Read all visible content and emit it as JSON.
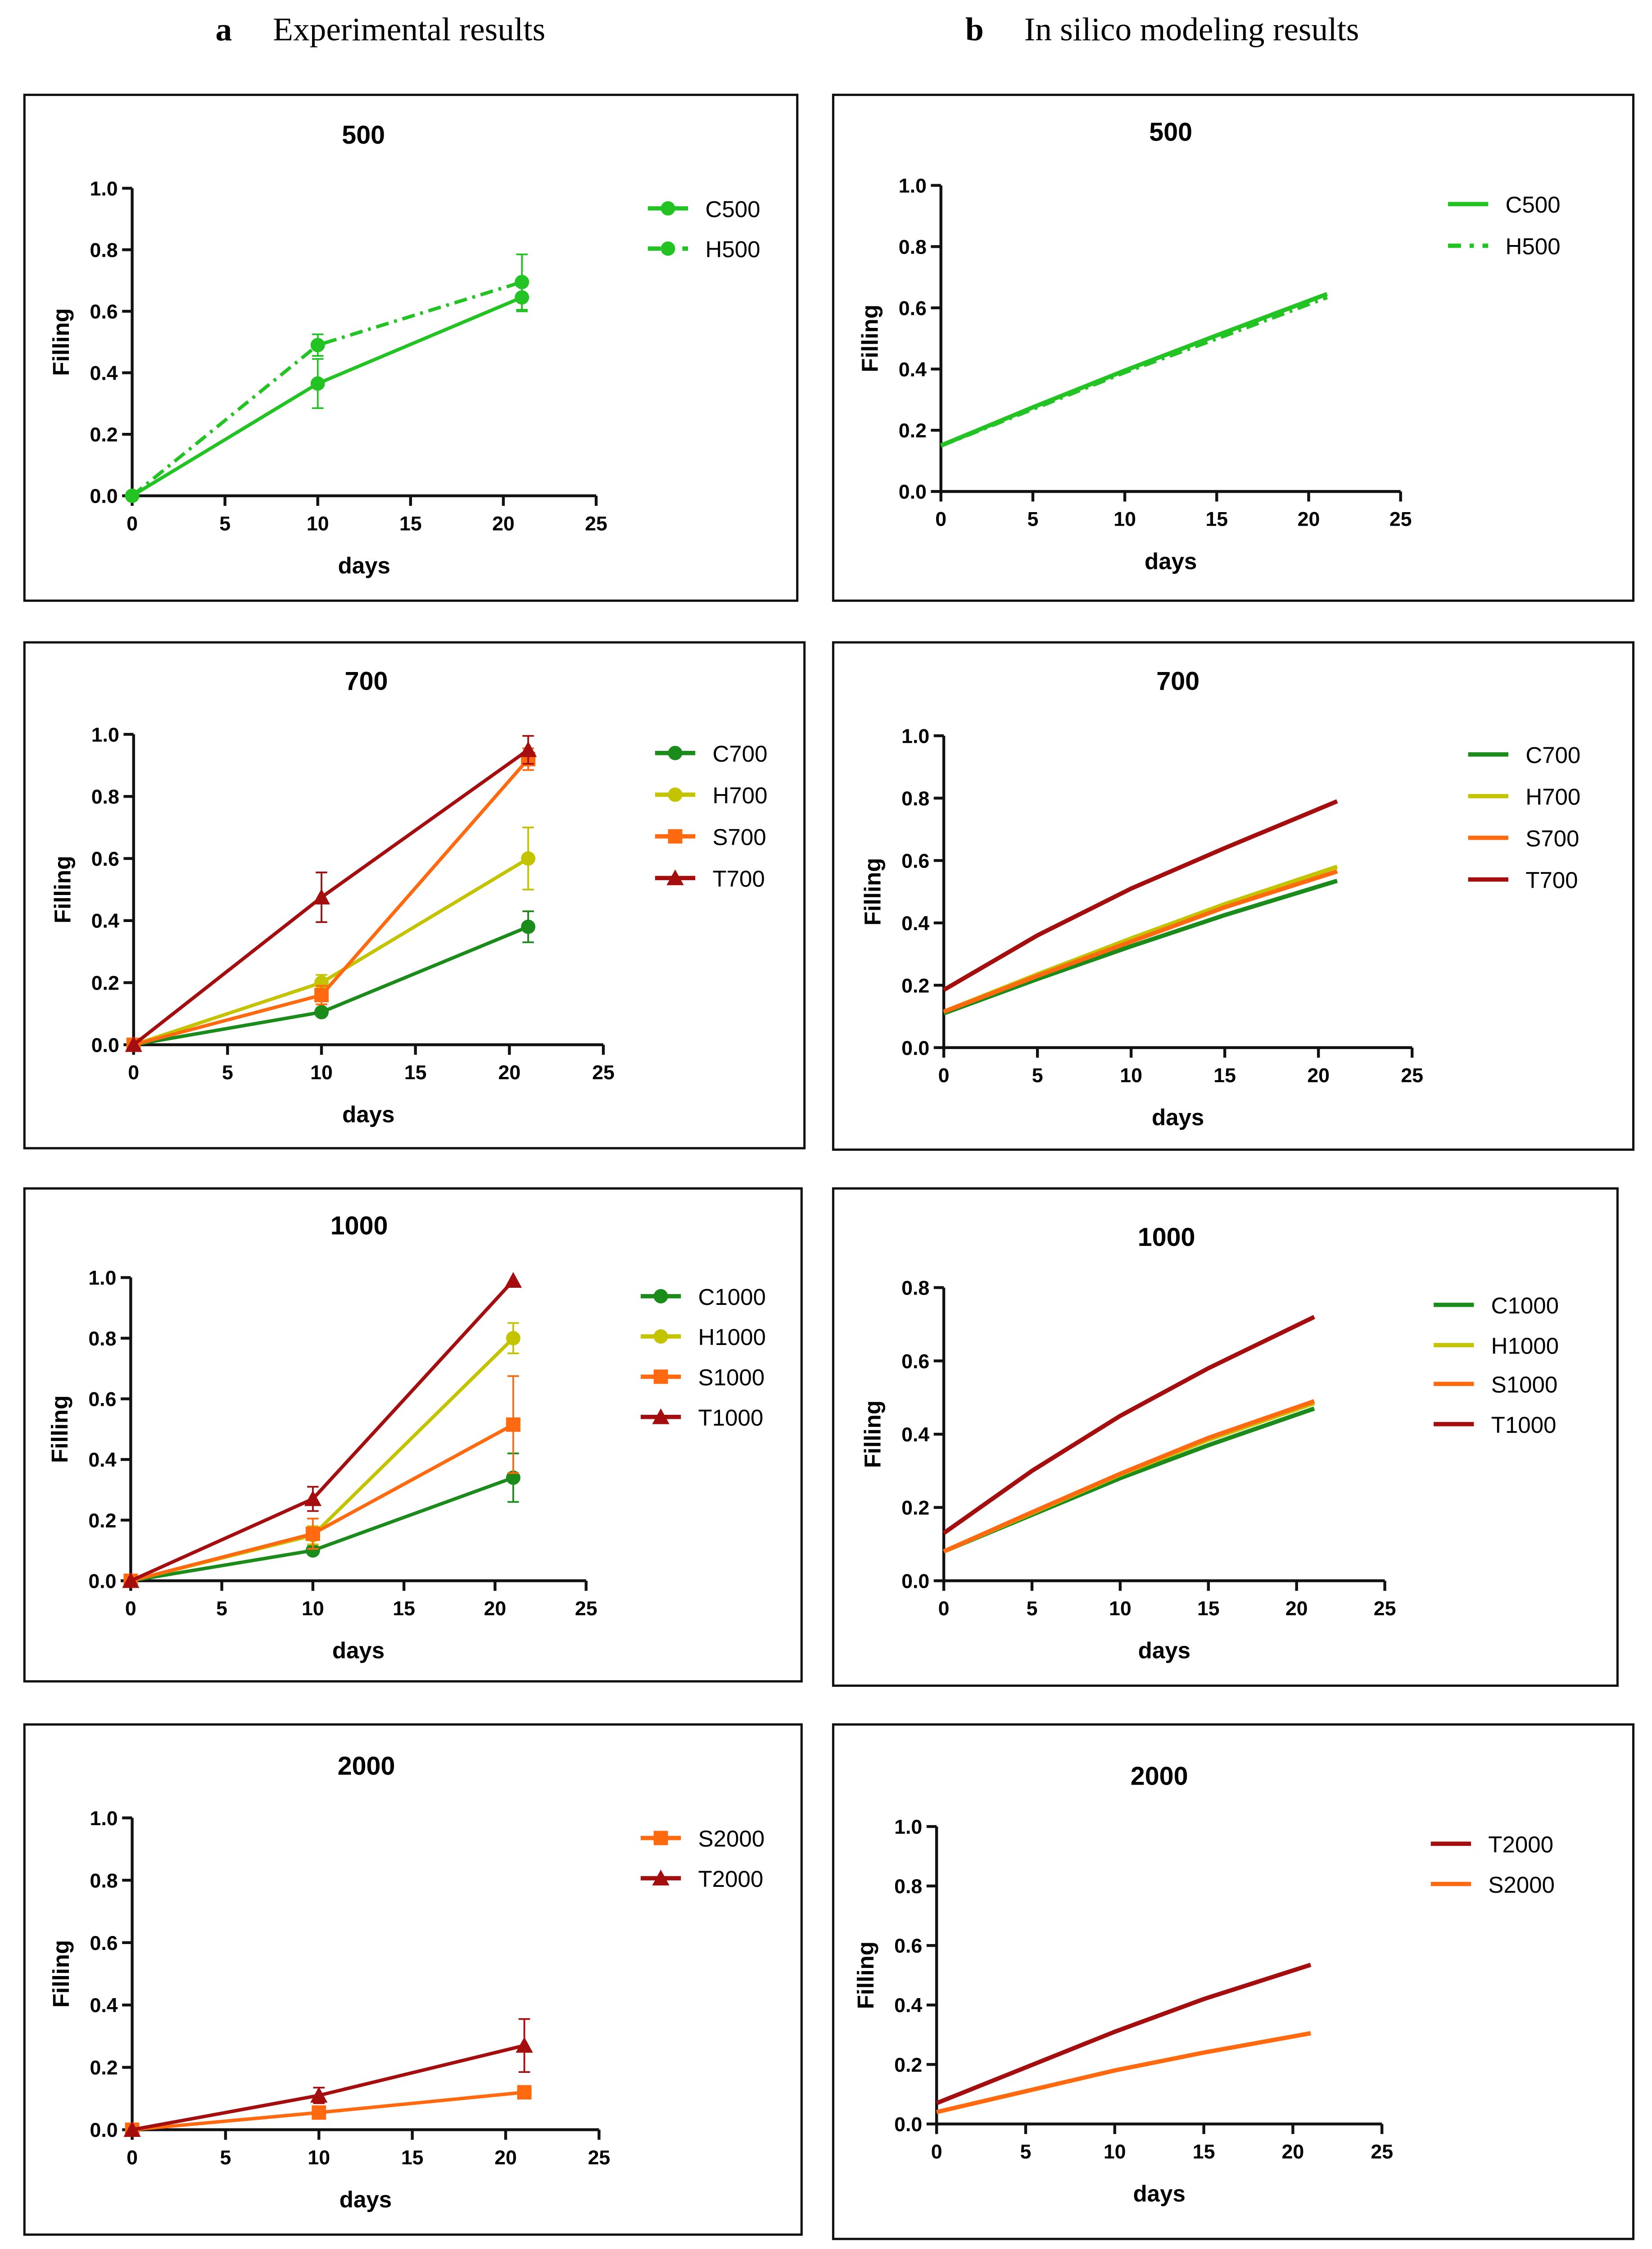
{
  "headers": {
    "a_letter": "a",
    "a_title": "Experimental results",
    "b_letter": "b",
    "b_title": "In silico modeling results"
  },
  "colors": {
    "green500": "#22c322",
    "C": "#1b8b1b",
    "H": "#c3c300",
    "S": "#ff6a10",
    "T": "#a40e0e"
  },
  "chart_data": [
    {
      "type": "line",
      "panel": "a",
      "title": "500",
      "xlabel": "days",
      "ylabel": "Filling",
      "xlim": [
        0,
        25
      ],
      "ylim": [
        0,
        1.0
      ],
      "xticks": [
        "0",
        "5",
        "10",
        "15",
        "20",
        "25"
      ],
      "yticks": [
        "0.0",
        "0.2",
        "0.4",
        "0.6",
        "0.8",
        "1.0"
      ],
      "legend": "right",
      "series": [
        {
          "name": "C500",
          "color": "#22c322",
          "dash": "solid",
          "marker": "circle",
          "x": [
            0,
            10,
            21
          ],
          "y": [
            0,
            0.365,
            0.645
          ],
          "err": [
            0,
            0.08,
            0.045
          ]
        },
        {
          "name": "H500",
          "color": "#22c322",
          "dash": "dashdot",
          "marker": "circle",
          "x": [
            0,
            10,
            21
          ],
          "y": [
            0,
            0.49,
            0.695
          ],
          "err": [
            0,
            0.035,
            0.09
          ]
        }
      ]
    },
    {
      "type": "line",
      "panel": "b",
      "title": "500",
      "xlabel": "days",
      "ylabel": "Filling",
      "xlim": [
        0,
        25
      ],
      "ylim": [
        0,
        1.0
      ],
      "xticks": [
        "0",
        "5",
        "10",
        "15",
        "20",
        "25"
      ],
      "yticks": [
        "0.0",
        "0.2",
        "0.4",
        "0.6",
        "0.8",
        "1.0"
      ],
      "legend": "right",
      "series": [
        {
          "name": "C500",
          "color": "#22c322",
          "dash": "solid",
          "x": [
            0,
            5,
            10,
            15,
            21
          ],
          "y": [
            0.15,
            0.275,
            0.395,
            0.51,
            0.645
          ]
        },
        {
          "name": "H500",
          "color": "#22c322",
          "dash": "dashdot",
          "x": [
            0,
            5,
            10,
            15,
            21
          ],
          "y": [
            0.15,
            0.27,
            0.39,
            0.5,
            0.635
          ]
        }
      ]
    },
    {
      "type": "line",
      "panel": "a",
      "title": "700",
      "xlabel": "days",
      "ylabel": "Filling",
      "xlim": [
        0,
        25
      ],
      "ylim": [
        0,
        1.0
      ],
      "xticks": [
        "0",
        "5",
        "10",
        "15",
        "20",
        "25"
      ],
      "yticks": [
        "0.0",
        "0.2",
        "0.4",
        "0.6",
        "0.8",
        "1.0"
      ],
      "legend": "right",
      "series": [
        {
          "name": "C700",
          "color": "#1b8b1b",
          "dash": "solid",
          "marker": "circle",
          "x": [
            0,
            10,
            21
          ],
          "y": [
            0,
            0.105,
            0.38
          ],
          "err": [
            0,
            0.01,
            0.05
          ]
        },
        {
          "name": "H700",
          "color": "#c3c300",
          "dash": "solid",
          "marker": "circle",
          "x": [
            0,
            10,
            21
          ],
          "y": [
            0,
            0.2,
            0.6
          ],
          "err": [
            0,
            0.025,
            0.1
          ]
        },
        {
          "name": "S700",
          "color": "#ff6a10",
          "dash": "solid",
          "marker": "square",
          "x": [
            0,
            10,
            21
          ],
          "y": [
            0,
            0.16,
            0.92
          ],
          "err": [
            0,
            0.03,
            0.035
          ]
        },
        {
          "name": "T700",
          "color": "#a40e0e",
          "dash": "solid",
          "marker": "triangle",
          "x": [
            0,
            10,
            21
          ],
          "y": [
            0,
            0.475,
            0.95
          ],
          "err": [
            0,
            0.08,
            0.045
          ]
        }
      ]
    },
    {
      "type": "line",
      "panel": "b",
      "title": "700",
      "xlabel": "days",
      "ylabel": "Filling",
      "xlim": [
        0,
        25
      ],
      "ylim": [
        0,
        1.0
      ],
      "xticks": [
        "0",
        "5",
        "10",
        "15",
        "20",
        "25"
      ],
      "yticks": [
        "0.0",
        "0.2",
        "0.4",
        "0.6",
        "0.8",
        "1.0"
      ],
      "legend": "right",
      "series": [
        {
          "name": "C700",
          "color": "#1b8b1b",
          "dash": "solid",
          "x": [
            0,
            5,
            10,
            15,
            21
          ],
          "y": [
            0.11,
            0.22,
            0.325,
            0.425,
            0.535
          ]
        },
        {
          "name": "H700",
          "color": "#c3c300",
          "dash": "solid",
          "x": [
            0,
            5,
            10,
            15,
            21
          ],
          "y": [
            0.115,
            0.235,
            0.35,
            0.46,
            0.58
          ]
        },
        {
          "name": "S700",
          "color": "#ff6a10",
          "dash": "solid",
          "x": [
            0,
            5,
            10,
            15,
            21
          ],
          "y": [
            0.115,
            0.23,
            0.34,
            0.45,
            0.565
          ]
        },
        {
          "name": "T700",
          "color": "#a40e0e",
          "dash": "solid",
          "x": [
            0,
            5,
            10,
            15,
            21
          ],
          "y": [
            0.185,
            0.36,
            0.51,
            0.64,
            0.79
          ]
        }
      ]
    },
    {
      "type": "line",
      "panel": "a",
      "title": "1000",
      "xlabel": "days",
      "ylabel": "Filling",
      "xlim": [
        0,
        25
      ],
      "ylim": [
        0,
        1.0
      ],
      "xticks": [
        "0",
        "5",
        "10",
        "15",
        "20",
        "25"
      ],
      "yticks": [
        "0.0",
        "0.2",
        "0.4",
        "0.6",
        "0.8",
        "1.0"
      ],
      "legend": "right",
      "series": [
        {
          "name": "C1000",
          "color": "#1b8b1b",
          "dash": "solid",
          "marker": "circle",
          "x": [
            0,
            10,
            21
          ],
          "y": [
            0,
            0.1,
            0.34
          ],
          "err": [
            0,
            0.01,
            0.08
          ]
        },
        {
          "name": "H1000",
          "color": "#c3c300",
          "dash": "solid",
          "marker": "circle",
          "x": [
            0,
            10,
            21
          ],
          "y": [
            0,
            0.15,
            0.8
          ],
          "err": [
            0,
            0.03,
            0.05
          ]
        },
        {
          "name": "S1000",
          "color": "#ff6a10",
          "dash": "solid",
          "marker": "square",
          "x": [
            0,
            10,
            21
          ],
          "y": [
            0,
            0.155,
            0.515
          ],
          "err": [
            0,
            0.05,
            0.16
          ]
        },
        {
          "name": "T1000",
          "color": "#a40e0e",
          "dash": "solid",
          "marker": "triangle",
          "x": [
            0,
            10,
            21
          ],
          "y": [
            0,
            0.27,
            0.99
          ],
          "err": [
            0,
            0.04,
            0
          ]
        }
      ]
    },
    {
      "type": "line",
      "panel": "b",
      "title": "1000",
      "xlabel": "days",
      "ylabel": "Filling",
      "xlim": [
        0,
        25
      ],
      "ylim": [
        0,
        0.8
      ],
      "xticks": [
        "0",
        "5",
        "10",
        "15",
        "20",
        "25"
      ],
      "yticks": [
        "0.0",
        "0.2",
        "0.4",
        "0.6",
        "0.8"
      ],
      "legend": "right",
      "series": [
        {
          "name": "C1000",
          "color": "#1b8b1b",
          "dash": "solid",
          "x": [
            0,
            5,
            10,
            15,
            21
          ],
          "y": [
            0.08,
            0.18,
            0.28,
            0.37,
            0.47
          ]
        },
        {
          "name": "H1000",
          "color": "#c3c300",
          "dash": "solid",
          "x": [
            0,
            5,
            10,
            15,
            21
          ],
          "y": [
            0.08,
            0.185,
            0.29,
            0.385,
            0.485
          ]
        },
        {
          "name": "S1000",
          "color": "#ff6a10",
          "dash": "solid",
          "x": [
            0,
            5,
            10,
            15,
            21
          ],
          "y": [
            0.08,
            0.187,
            0.292,
            0.39,
            0.49
          ]
        },
        {
          "name": "T1000",
          "color": "#a40e0e",
          "dash": "solid",
          "x": [
            0,
            5,
            10,
            15,
            21
          ],
          "y": [
            0.13,
            0.3,
            0.45,
            0.58,
            0.72
          ]
        }
      ]
    },
    {
      "type": "line",
      "panel": "a",
      "title": "2000",
      "xlabel": "days",
      "ylabel": "Filling",
      "xlim": [
        0,
        25
      ],
      "ylim": [
        0,
        1.0
      ],
      "xticks": [
        "0",
        "5",
        "10",
        "15",
        "20",
        "25"
      ],
      "yticks": [
        "0.0",
        "0.2",
        "0.4",
        "0.6",
        "0.8",
        "1.0"
      ],
      "legend": "right",
      "series": [
        {
          "name": "S2000",
          "color": "#ff6a10",
          "dash": "solid",
          "marker": "square",
          "x": [
            0,
            10,
            21
          ],
          "y": [
            0,
            0.055,
            0.12
          ],
          "err": [
            0,
            0.02,
            0.02
          ]
        },
        {
          "name": "T2000",
          "color": "#a40e0e",
          "dash": "solid",
          "marker": "triangle",
          "x": [
            0,
            10,
            21
          ],
          "y": [
            0,
            0.11,
            0.27
          ],
          "err": [
            0,
            0.025,
            0.085
          ]
        }
      ]
    },
    {
      "type": "line",
      "panel": "b",
      "title": "2000",
      "xlabel": "days",
      "ylabel": "Filling",
      "xlim": [
        0,
        25
      ],
      "ylim": [
        0,
        1.0
      ],
      "xticks": [
        "0",
        "5",
        "10",
        "15",
        "20",
        "25"
      ],
      "yticks": [
        "0.0",
        "0.2",
        "0.4",
        "0.6",
        "0.8",
        "1.0"
      ],
      "legend": "right",
      "series": [
        {
          "name": "T2000",
          "color": "#a40e0e",
          "dash": "solid",
          "x": [
            0,
            5,
            10,
            15,
            21
          ],
          "y": [
            0.07,
            0.19,
            0.31,
            0.42,
            0.535
          ]
        },
        {
          "name": "S2000",
          "color": "#ff6a10",
          "dash": "solid",
          "x": [
            0,
            5,
            10,
            15,
            21
          ],
          "y": [
            0.04,
            0.11,
            0.18,
            0.24,
            0.305
          ]
        }
      ]
    }
  ]
}
